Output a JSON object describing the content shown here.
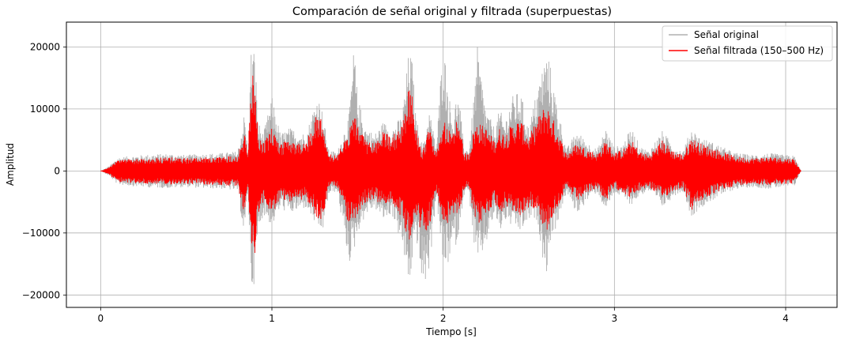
{
  "chart_data": {
    "type": "line",
    "title": "Comparación de señal original y filtrada (superpuestas)",
    "xlabel": "Tiempo [s]",
    "ylabel": "Amplitud",
    "xlim": [
      -0.2,
      4.3
    ],
    "ylim": [
      -22000,
      24000
    ],
    "xticks": [
      0,
      1,
      2,
      3,
      4
    ],
    "yticks": [
      -20000,
      -10000,
      0,
      10000,
      20000
    ],
    "xtick_labels": [
      "0",
      "1",
      "2",
      "3",
      "4"
    ],
    "ytick_labels": [
      "−20000",
      "−10000",
      "0",
      "10000",
      "20000"
    ],
    "grid": true,
    "legend_position": "top-right",
    "duration_s": 4.09,
    "series": [
      {
        "name": "Señal original",
        "color": "#b0b0b0",
        "envelope": {
          "t": [
            0,
            0.05,
            0.1,
            0.2,
            0.3,
            0.4,
            0.5,
            0.6,
            0.7,
            0.8,
            0.84,
            0.86,
            0.88,
            0.9,
            0.92,
            0.95,
            1.0,
            1.05,
            1.1,
            1.2,
            1.26,
            1.28,
            1.3,
            1.33,
            1.38,
            1.45,
            1.48,
            1.5,
            1.55,
            1.6,
            1.65,
            1.7,
            1.76,
            1.8,
            1.82,
            1.84,
            1.88,
            1.92,
            1.96,
            2.0,
            2.03,
            2.06,
            2.08,
            2.1,
            2.12,
            2.15,
            2.18,
            2.2,
            2.25,
            2.3,
            2.33,
            2.36,
            2.4,
            2.45,
            2.5,
            2.55,
            2.6,
            2.62,
            2.65,
            2.72,
            2.78,
            2.85,
            2.9,
            2.95,
            3.0,
            3.05,
            3.1,
            3.15,
            3.2,
            3.28,
            3.35,
            3.4,
            3.45,
            3.5,
            3.6,
            3.7,
            3.8,
            3.9,
            4.0,
            4.05,
            4.09
          ],
          "upper": [
            0,
            800,
            2200,
            2500,
            2700,
            2800,
            2600,
            2800,
            2900,
            3200,
            9500,
            3000,
            20800,
            19500,
            8000,
            6000,
            12000,
            6000,
            7000,
            6000,
            12000,
            11500,
            9000,
            3500,
            3000,
            9000,
            20500,
            12000,
            7000,
            6000,
            8000,
            7000,
            9000,
            19500,
            18000,
            9000,
            4000,
            10000,
            3800,
            21500,
            13000,
            8000,
            13000,
            10000,
            4000,
            3500,
            12000,
            20000,
            10000,
            7000,
            10000,
            8000,
            12000,
            13000,
            7000,
            13500,
            19000,
            18000,
            13000,
            3500,
            6500,
            4500,
            3500,
            7000,
            3800,
            4500,
            7000,
            4000,
            3300,
            6500,
            4000,
            3300,
            7000,
            5500,
            4300,
            3000,
            2600,
            2900,
            2600,
            2500,
            0
          ],
          "lower": [
            0,
            -800,
            -2200,
            -2500,
            -2700,
            -2800,
            -2600,
            -2800,
            -2900,
            -3200,
            -11000,
            -3000,
            -19000,
            -18000,
            -10000,
            -7000,
            -9000,
            -6000,
            -7000,
            -6000,
            -9000,
            -10000,
            -9500,
            -4000,
            -3200,
            -15000,
            -13000,
            -10000,
            -7000,
            -6000,
            -8000,
            -7000,
            -12000,
            -19000,
            -15000,
            -10000,
            -19500,
            -16000,
            -4000,
            -16000,
            -15000,
            -12000,
            -12000,
            -8000,
            -4000,
            -3500,
            -12000,
            -15500,
            -12000,
            -7000,
            -10000,
            -8000,
            -9000,
            -10000,
            -8000,
            -8000,
            -17500,
            -12000,
            -10000,
            -3500,
            -7000,
            -4500,
            -3500,
            -6500,
            -3500,
            -4500,
            -5500,
            -4000,
            -3300,
            -6000,
            -4000,
            -3300,
            -7500,
            -6000,
            -4300,
            -3000,
            -2600,
            -2900,
            -2600,
            -2500,
            0
          ]
        }
      },
      {
        "name": "Señal filtrada (150–500 Hz)",
        "color": "#ff0000",
        "envelope": {
          "t": [
            0,
            0.05,
            0.1,
            0.2,
            0.3,
            0.4,
            0.5,
            0.6,
            0.7,
            0.8,
            0.84,
            0.86,
            0.88,
            0.9,
            0.92,
            0.95,
            1.0,
            1.05,
            1.1,
            1.2,
            1.26,
            1.28,
            1.3,
            1.33,
            1.38,
            1.45,
            1.48,
            1.5,
            1.55,
            1.6,
            1.65,
            1.7,
            1.76,
            1.8,
            1.82,
            1.84,
            1.88,
            1.92,
            1.96,
            2.0,
            2.03,
            2.06,
            2.08,
            2.1,
            2.12,
            2.15,
            2.18,
            2.2,
            2.25,
            2.3,
            2.33,
            2.36,
            2.4,
            2.45,
            2.5,
            2.55,
            2.6,
            2.62,
            2.65,
            2.72,
            2.78,
            2.85,
            2.9,
            2.95,
            3.0,
            3.05,
            3.1,
            3.15,
            3.2,
            3.28,
            3.35,
            3.4,
            3.45,
            3.5,
            3.6,
            3.7,
            3.8,
            3.9,
            4.0,
            4.05,
            4.09
          ],
          "upper": [
            0,
            600,
            1800,
            2000,
            2100,
            2200,
            2100,
            2200,
            2300,
            2500,
            6500,
            2500,
            16500,
            14500,
            6000,
            4500,
            7000,
            4500,
            5000,
            4500,
            9500,
            9000,
            7000,
            2800,
            2500,
            7000,
            9500,
            7500,
            5000,
            4500,
            6500,
            5500,
            7500,
            13500,
            12500,
            7000,
            3200,
            7000,
            3000,
            8000,
            7500,
            6000,
            8500,
            7500,
            3000,
            2800,
            7000,
            8000,
            7000,
            5000,
            7000,
            6000,
            7500,
            8500,
            5500,
            8500,
            11000,
            10000,
            8000,
            2800,
            4500,
            3500,
            2800,
            5000,
            3000,
            3500,
            5000,
            3200,
            2600,
            5000,
            3200,
            2700,
            5500,
            4500,
            3500,
            2400,
            2100,
            2300,
            2100,
            2000,
            0
          ],
          "lower": [
            0,
            -600,
            -1800,
            -2000,
            -2100,
            -2200,
            -2100,
            -2200,
            -2300,
            -2500,
            -7000,
            -2500,
            -15500,
            -14000,
            -7000,
            -5000,
            -7000,
            -4500,
            -5000,
            -4500,
            -7500,
            -8000,
            -7500,
            -3000,
            -2600,
            -9000,
            -8000,
            -7000,
            -5000,
            -4500,
            -6000,
            -5500,
            -8000,
            -11500,
            -10000,
            -7000,
            -10500,
            -9000,
            -3200,
            -8000,
            -8500,
            -7000,
            -7500,
            -6000,
            -3000,
            -2800,
            -7500,
            -9000,
            -7500,
            -5000,
            -7000,
            -6000,
            -6500,
            -7500,
            -6000,
            -6000,
            -10500,
            -8500,
            -7000,
            -2800,
            -5000,
            -3500,
            -2800,
            -5000,
            -2800,
            -3500,
            -4500,
            -3200,
            -2600,
            -4500,
            -3200,
            -2700,
            -6500,
            -5000,
            -3500,
            -2400,
            -2100,
            -2300,
            -2100,
            -2000,
            0
          ]
        }
      }
    ]
  }
}
